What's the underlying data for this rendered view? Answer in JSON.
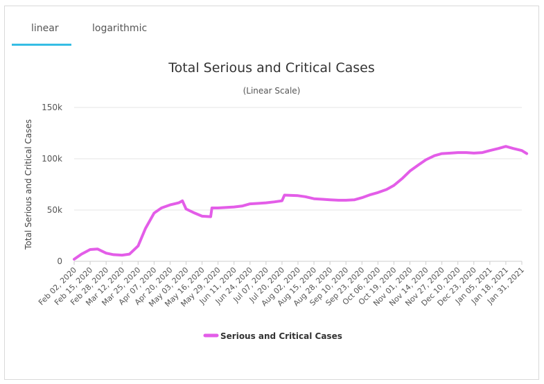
{
  "tabs": [
    {
      "label": "linear",
      "active": true
    },
    {
      "label": "logarithmic",
      "active": false
    }
  ],
  "accent_color": "#35bde4",
  "chart_data": {
    "type": "line",
    "title": "Total Serious and Critical Cases",
    "subtitle": "(Linear Scale)",
    "ylabel": "Total Serious and Critical Cases",
    "xlabel": "",
    "ylim": [
      0,
      150000
    ],
    "yticks": [
      {
        "value": 0,
        "label": "0"
      },
      {
        "value": 50000,
        "label": "50k"
      },
      {
        "value": 100000,
        "label": "100k"
      },
      {
        "value": 150000,
        "label": "150k"
      }
    ],
    "xticks": [
      "Feb 02, 2020",
      "Feb 15, 2020",
      "Feb 28, 2020",
      "Mar 12, 2020",
      "Mar 25, 2020",
      "Apr 07, 2020",
      "Apr 20, 2020",
      "May 03, 2020",
      "May 16, 2020",
      "May 29, 2020",
      "Jun 11, 2020",
      "Jun 24, 2020",
      "Jul 07, 2020",
      "Jul 20, 2020",
      "Aug 02, 2020",
      "Aug 15, 2020",
      "Aug 28, 2020",
      "Sep 10, 2020",
      "Sep 23, 2020",
      "Oct 06, 2020",
      "Oct 19, 2020",
      "Nov 01, 2020",
      "Nov 14, 2020",
      "Nov 27, 2020",
      "Dec 10, 2020",
      "Dec 23, 2020",
      "Jan 05, 2021",
      "Jan 18, 2021",
      "Jan 31, 2021"
    ],
    "grid": true,
    "legend_position": "bottom",
    "series": [
      {
        "name": "Serious and Critical Cases",
        "color": "#e35de8",
        "x": [
          "Feb 02, 2020",
          "Feb 08, 2020",
          "Feb 15, 2020",
          "Feb 21, 2020",
          "Feb 28, 2020",
          "Mar 05, 2020",
          "Mar 12, 2020",
          "Mar 18, 2020",
          "Mar 25, 2020",
          "Mar 31, 2020",
          "Apr 07, 2020",
          "Apr 13, 2020",
          "Apr 20, 2020",
          "Apr 27, 2020",
          "Apr 30, 2020",
          "May 03, 2020",
          "May 10, 2020",
          "May 16, 2020",
          "May 23, 2020",
          "May 24, 2020",
          "May 29, 2020",
          "Jun 05, 2020",
          "Jun 11, 2020",
          "Jun 18, 2020",
          "Jun 24, 2020",
          "Jul 01, 2020",
          "Jul 07, 2020",
          "Jul 14, 2020",
          "Jul 20, 2020",
          "Jul 22, 2020",
          "Aug 02, 2020",
          "Aug 08, 2020",
          "Aug 15, 2020",
          "Aug 22, 2020",
          "Aug 28, 2020",
          "Sep 04, 2020",
          "Sep 10, 2020",
          "Sep 17, 2020",
          "Sep 23, 2020",
          "Sep 30, 2020",
          "Oct 06, 2020",
          "Oct 13, 2020",
          "Oct 19, 2020",
          "Oct 26, 2020",
          "Nov 01, 2020",
          "Nov 08, 2020",
          "Nov 14, 2020",
          "Nov 21, 2020",
          "Nov 27, 2020",
          "Dec 04, 2020",
          "Dec 10, 2020",
          "Dec 17, 2020",
          "Dec 23, 2020",
          "Dec 30, 2020",
          "Jan 05, 2021",
          "Jan 12, 2021",
          "Jan 18, 2021",
          "Jan 24, 2021",
          "Jan 31, 2021",
          "Feb 04, 2021"
        ],
        "values": [
          2000,
          7000,
          11500,
          12000,
          8000,
          6500,
          6000,
          7000,
          15000,
          32000,
          47000,
          52000,
          55000,
          57000,
          59000,
          51000,
          47000,
          44000,
          43500,
          52000,
          52000,
          52500,
          53000,
          54000,
          56000,
          56500,
          57000,
          58000,
          59000,
          64500,
          64000,
          63000,
          61000,
          60500,
          60000,
          59500,
          59500,
          60000,
          62000,
          65000,
          67000,
          70000,
          74000,
          81000,
          88000,
          94000,
          99000,
          103000,
          105000,
          105500,
          106000,
          106000,
          105500,
          106000,
          108000,
          110000,
          112000,
          110000,
          108000,
          105000
        ]
      }
    ]
  }
}
